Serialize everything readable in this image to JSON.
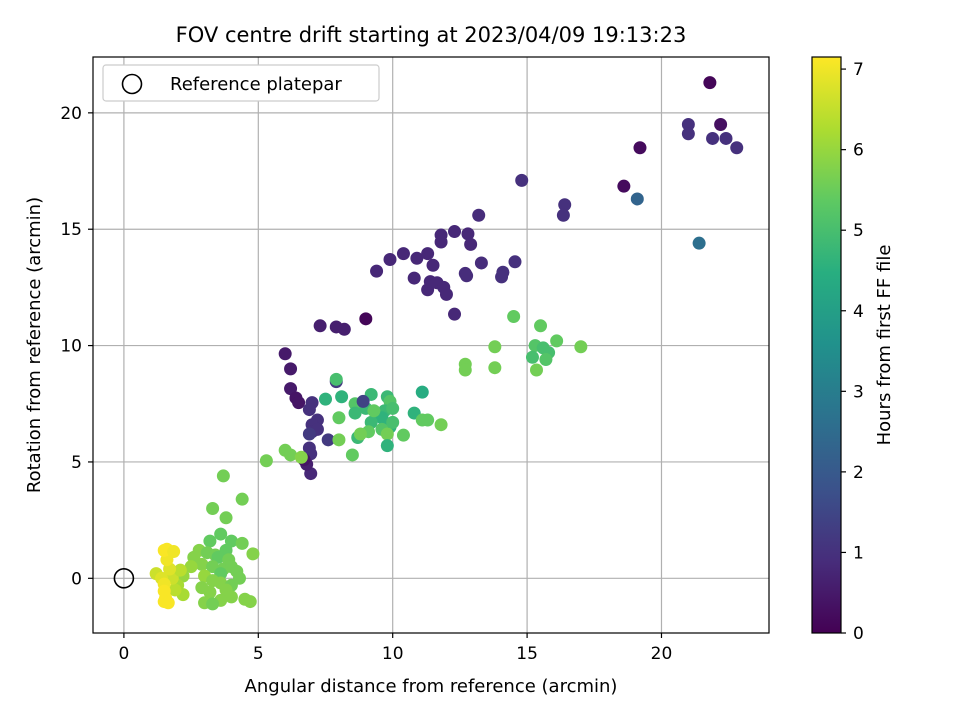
{
  "chart_data": {
    "type": "scatter",
    "title": "FOV centre drift starting at 2023/04/09 19:13:23",
    "xlabel": "Angular distance from reference (arcmin)",
    "ylabel": "Rotation from reference (arcmin)",
    "xlim": [
      -1.15,
      24.0
    ],
    "ylim": [
      -2.35,
      22.4
    ],
    "xticks": [
      0,
      5,
      10,
      15,
      20
    ],
    "yticks": [
      0,
      5,
      10,
      15,
      20
    ],
    "grid": true,
    "legend": {
      "placement": "upper-left",
      "entries": [
        "Reference platepar"
      ]
    },
    "reference": {
      "x": 0,
      "y": 0
    },
    "colorbar": {
      "label": "Hours from first FF file",
      "colormap": "viridis",
      "range": [
        0,
        7.15
      ],
      "ticks": [
        0,
        1,
        2,
        3,
        4,
        5,
        6,
        7
      ]
    },
    "points": [
      [
        21.8,
        21.3,
        0.1
      ],
      [
        22.2,
        19.5,
        0.3
      ],
      [
        19.2,
        18.5,
        0.2
      ],
      [
        18.6,
        16.85,
        0.2
      ],
      [
        21.0,
        19.5,
        1.0
      ],
      [
        21.0,
        19.1,
        1.0
      ],
      [
        21.9,
        18.9,
        1.0
      ],
      [
        22.4,
        18.9,
        1.0
      ],
      [
        22.8,
        18.5,
        1.0
      ],
      [
        19.1,
        16.3,
        2.3
      ],
      [
        21.4,
        14.4,
        2.6
      ],
      [
        14.8,
        17.1,
        1.0
      ],
      [
        16.4,
        16.05,
        1.0
      ],
      [
        16.35,
        15.6,
        1.0
      ],
      [
        13.2,
        15.6,
        0.9
      ],
      [
        12.3,
        14.9,
        0.8
      ],
      [
        12.8,
        14.8,
        0.8
      ],
      [
        11.8,
        14.75,
        0.8
      ],
      [
        11.8,
        14.45,
        0.8
      ],
      [
        12.9,
        14.35,
        0.8
      ],
      [
        10.4,
        13.95,
        0.8
      ],
      [
        9.9,
        13.7,
        0.8
      ],
      [
        10.9,
        13.75,
        0.8
      ],
      [
        11.3,
        13.95,
        0.8
      ],
      [
        11.5,
        13.45,
        0.8
      ],
      [
        9.4,
        13.2,
        0.8
      ],
      [
        12.7,
        13.1,
        0.9
      ],
      [
        12.75,
        13.0,
        0.9
      ],
      [
        13.3,
        13.55,
        0.9
      ],
      [
        14.1,
        13.15,
        1.0
      ],
      [
        14.05,
        12.95,
        1.0
      ],
      [
        14.55,
        13.6,
        1.0
      ],
      [
        10.8,
        12.9,
        0.8
      ],
      [
        11.3,
        12.4,
        0.8
      ],
      [
        11.4,
        12.75,
        0.8
      ],
      [
        11.65,
        12.7,
        0.8
      ],
      [
        11.9,
        12.5,
        0.8
      ],
      [
        12.0,
        12.2,
        0.8
      ],
      [
        12.3,
        11.35,
        0.8
      ],
      [
        9.0,
        11.15,
        0.1
      ],
      [
        7.3,
        10.85,
        0.6
      ],
      [
        7.9,
        10.8,
        0.6
      ],
      [
        8.2,
        10.7,
        0.6
      ],
      [
        6.0,
        9.65,
        0.5
      ],
      [
        6.2,
        9.0,
        0.5
      ],
      [
        6.2,
        8.15,
        0.5
      ],
      [
        6.4,
        7.75,
        0.4
      ],
      [
        6.5,
        7.55,
        0.4
      ],
      [
        7.9,
        8.45,
        1.2
      ],
      [
        7.0,
        7.55,
        1.0
      ],
      [
        6.9,
        7.25,
        1.0
      ],
      [
        7.2,
        6.8,
        1.0
      ],
      [
        7.0,
        6.6,
        1.0
      ],
      [
        7.0,
        6.3,
        1.0
      ],
      [
        7.2,
        6.4,
        1.0
      ],
      [
        6.9,
        6.2,
        1.2
      ],
      [
        7.6,
        5.95,
        1.2
      ],
      [
        6.9,
        5.6,
        1.0
      ],
      [
        6.95,
        5.35,
        1.0
      ],
      [
        6.95,
        4.5,
        0.8
      ],
      [
        6.8,
        4.9,
        0.6
      ],
      [
        6.7,
        5.1,
        0.4
      ],
      [
        7.9,
        8.55,
        5.0
      ],
      [
        7.5,
        7.7,
        4.6
      ],
      [
        8.1,
        7.8,
        4.6
      ],
      [
        8.6,
        7.5,
        5.2
      ],
      [
        8.6,
        7.1,
        4.8
      ],
      [
        9.0,
        7.3,
        4.8
      ],
      [
        9.2,
        7.9,
        4.8
      ],
      [
        9.8,
        7.8,
        4.8
      ],
      [
        9.9,
        7.6,
        5.2
      ],
      [
        9.4,
        7.0,
        5.2
      ],
      [
        9.7,
        7.2,
        4.8
      ],
      [
        10.0,
        7.3,
        5.0
      ],
      [
        9.6,
        6.9,
        4.6
      ],
      [
        9.2,
        6.7,
        4.8
      ],
      [
        9.9,
        6.5,
        4.6
      ],
      [
        10.0,
        6.7,
        5.0
      ],
      [
        9.6,
        6.4,
        5.2
      ],
      [
        9.8,
        6.2,
        5.6
      ],
      [
        10.4,
        6.15,
        5.4
      ],
      [
        9.3,
        7.2,
        5.4
      ],
      [
        9.1,
        6.3,
        5.4
      ],
      [
        8.9,
        7.6,
        1.4
      ],
      [
        9.8,
        5.7,
        4.6
      ],
      [
        8.7,
        6.05,
        4.8
      ],
      [
        8.0,
        6.9,
        5.4
      ],
      [
        8.0,
        5.95,
        5.6
      ],
      [
        8.5,
        5.3,
        5.4
      ],
      [
        8.8,
        6.2,
        5.6
      ],
      [
        10.8,
        7.1,
        4.6
      ],
      [
        11.1,
        8.0,
        4.4
      ],
      [
        11.1,
        6.8,
        5.4
      ],
      [
        11.3,
        6.8,
        5.4
      ],
      [
        11.8,
        6.6,
        5.6
      ],
      [
        14.5,
        11.25,
        5.4
      ],
      [
        15.5,
        10.85,
        5.4
      ],
      [
        16.1,
        10.2,
        5.4
      ],
      [
        17.0,
        9.95,
        5.6
      ],
      [
        13.8,
        9.95,
        5.6
      ],
      [
        15.3,
        10.0,
        5.2
      ],
      [
        15.6,
        9.9,
        5.0
      ],
      [
        15.8,
        9.7,
        5.0
      ],
      [
        15.2,
        9.5,
        5.0
      ],
      [
        15.7,
        9.4,
        5.2
      ],
      [
        15.35,
        8.95,
        5.6
      ],
      [
        12.7,
        9.2,
        5.6
      ],
      [
        12.7,
        8.95,
        5.6
      ],
      [
        13.8,
        9.05,
        5.6
      ],
      [
        5.3,
        5.05,
        5.6
      ],
      [
        6.0,
        5.5,
        5.6
      ],
      [
        6.2,
        5.3,
        5.6
      ],
      [
        6.6,
        5.2,
        5.8
      ],
      [
        3.7,
        4.4,
        5.6
      ],
      [
        4.4,
        3.4,
        5.6
      ],
      [
        3.3,
        3.0,
        5.6
      ],
      [
        3.8,
        2.6,
        5.6
      ],
      [
        3.6,
        1.9,
        5.4
      ],
      [
        3.2,
        1.6,
        5.4
      ],
      [
        4.0,
        1.6,
        5.4
      ],
      [
        4.4,
        1.5,
        5.6
      ],
      [
        4.8,
        1.05,
        5.8
      ],
      [
        2.8,
        1.2,
        5.8
      ],
      [
        3.1,
        1.1,
        5.6
      ],
      [
        3.4,
        1.0,
        5.6
      ],
      [
        3.8,
        1.2,
        5.4
      ],
      [
        3.5,
        0.9,
        5.4
      ],
      [
        3.9,
        0.8,
        5.6
      ],
      [
        2.9,
        0.6,
        5.8
      ],
      [
        3.3,
        0.5,
        5.6
      ],
      [
        3.7,
        0.4,
        5.6
      ],
      [
        4.0,
        0.5,
        5.6
      ],
      [
        4.2,
        0.3,
        5.6
      ],
      [
        3.6,
        0.2,
        5.4
      ],
      [
        3.0,
        0.1,
        6.0
      ],
      [
        3.3,
        -0.1,
        5.8
      ],
      [
        3.6,
        -0.2,
        5.8
      ],
      [
        4.0,
        -0.3,
        5.6
      ],
      [
        4.3,
        0.0,
        5.6
      ],
      [
        3.8,
        -0.5,
        5.8
      ],
      [
        3.2,
        -0.6,
        5.8
      ],
      [
        2.9,
        -0.4,
        5.8
      ],
      [
        4.0,
        -0.8,
        5.8
      ],
      [
        3.6,
        -0.95,
        5.8
      ],
      [
        4.5,
        -0.9,
        5.8
      ],
      [
        4.7,
        -1.0,
        5.8
      ],
      [
        3.0,
        -1.05,
        5.8
      ],
      [
        3.3,
        -1.1,
        5.6
      ],
      [
        2.6,
        0.9,
        5.8
      ],
      [
        2.5,
        0.5,
        6.0
      ],
      [
        2.2,
        0.1,
        6.0
      ],
      [
        2.0,
        -0.3,
        6.2
      ],
      [
        2.2,
        -0.7,
        6.2
      ],
      [
        1.9,
        -0.5,
        6.4
      ],
      [
        1.8,
        0.0,
        6.6
      ],
      [
        2.1,
        0.35,
        6.4
      ],
      [
        1.7,
        0.4,
        6.8
      ],
      [
        1.6,
        0.8,
        7.0
      ],
      [
        1.5,
        1.2,
        7.1
      ],
      [
        1.6,
        1.25,
        7.1
      ],
      [
        1.85,
        1.15,
        7.0
      ],
      [
        1.2,
        0.2,
        6.6
      ],
      [
        1.4,
        0.0,
        6.8
      ],
      [
        1.5,
        -0.25,
        7.0
      ],
      [
        1.5,
        -0.55,
        7.1
      ],
      [
        1.55,
        -0.85,
        7.1
      ],
      [
        1.5,
        -1.0,
        7.1
      ],
      [
        1.65,
        -1.05,
        7.1
      ]
    ]
  }
}
